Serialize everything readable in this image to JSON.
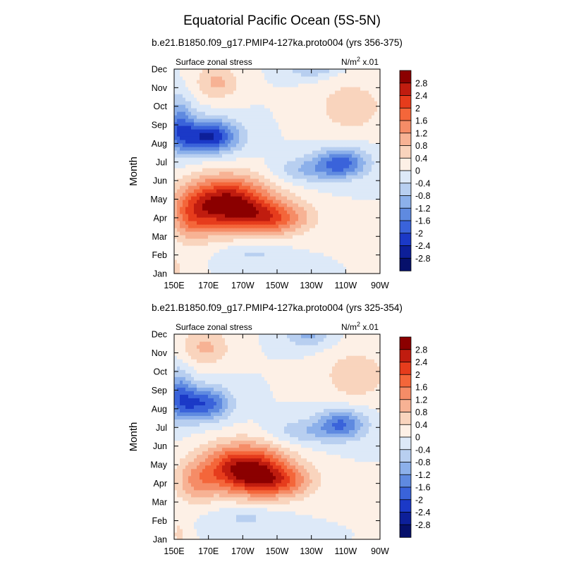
{
  "figure": {
    "title": "Equatorial Pacific Ocean (5S-5N)"
  },
  "chart_data": [
    {
      "type": "heatmap",
      "title": "b.e21.B1850.f09_g17.PMIP4-127ka.proto004 (yrs 356-375)",
      "left_label": "Surface zonal stress",
      "right_label": "N/m",
      "right_label_sup": "2",
      "right_label_suffix": " x.01",
      "xlabel": "",
      "ylabel": "Month",
      "x_ticks": [
        "150E",
        "170E",
        "170W",
        "150W",
        "130W",
        "110W",
        "90W"
      ],
      "y_ticks": [
        "Jan",
        "Feb",
        "Mar",
        "Apr",
        "May",
        "Jun",
        "Jul",
        "Aug",
        "Sep",
        "Oct",
        "Nov",
        "Dec"
      ],
      "xlim": [
        150,
        270
      ],
      "units": "N/m^2 x.01",
      "features": [
        {
          "lon": 180,
          "month": 3.8,
          "value": 3.1,
          "spread_lon": 26,
          "spread_month": 1.4
        },
        {
          "lon": 208,
          "month": 3.0,
          "value": 1.6,
          "spread_lon": 22,
          "spread_month": 0.9
        },
        {
          "lon": 160,
          "month": 2.8,
          "value": 0.9,
          "spread_lon": 12,
          "spread_month": 1.2
        },
        {
          "lon": 170,
          "month": 7.4,
          "value": -2.5,
          "spread_lon": 17,
          "spread_month": 0.9
        },
        {
          "lon": 153,
          "month": 8.0,
          "value": -1.4,
          "spread_lon": 8,
          "spread_month": 1.5
        },
        {
          "lon": 248,
          "month": 6.0,
          "value": -1.7,
          "spread_lon": 15,
          "spread_month": 0.8
        },
        {
          "lon": 228,
          "month": 5.6,
          "value": -0.8,
          "spread_lon": 20,
          "spread_month": 0.7
        },
        {
          "lon": 230,
          "month": 11.2,
          "value": -1.0,
          "spread_lon": 14,
          "spread_month": 0.6
        },
        {
          "lon": 175,
          "month": 10.3,
          "value": 0.9,
          "spread_lon": 13,
          "spread_month": 0.9
        },
        {
          "lon": 253,
          "month": 9.0,
          "value": 0.7,
          "spread_lon": 20,
          "spread_month": 1.4
        },
        {
          "lon": 196,
          "month": 1.1,
          "value": -0.5,
          "spread_lon": 18,
          "spread_month": 0.6
        },
        {
          "lon": 151,
          "month": 0.2,
          "value": 0.6,
          "spread_lon": 4,
          "spread_month": 0.7
        }
      ],
      "colorbar": {
        "levels": [
          "2.8",
          "2.4",
          "2",
          "1.6",
          "1.2",
          "0.8",
          "0.4",
          "0",
          "-0.4",
          "-0.8",
          "-1.2",
          "-1.6",
          "-2",
          "-2.4",
          "-2.8"
        ],
        "colors": [
          "#8b0000",
          "#c01c0f",
          "#e63c1c",
          "#f4663a",
          "#f58c67",
          "#f7b294",
          "#f9d4bd",
          "#fdf0e6",
          "#dde9f8",
          "#b8cff0",
          "#8cb0ea",
          "#5f8ae0",
          "#3a63da",
          "#1b39c7",
          "#0d1f99",
          "#06106b"
        ]
      }
    },
    {
      "type": "heatmap",
      "title": "b.e21.B1850.f09_g17.PMIP4-127ka.proto004 (yrs 325-354)",
      "left_label": "Surface zonal stress",
      "right_label": "N/m",
      "right_label_sup": "2",
      "right_label_suffix": " x.01",
      "xlabel": "",
      "ylabel": "Month",
      "x_ticks": [
        "150E",
        "170E",
        "170W",
        "150W",
        "130W",
        "110W",
        "90W"
      ],
      "y_ticks": [
        "Jan",
        "Feb",
        "Mar",
        "Apr",
        "May",
        "Jun",
        "Jul",
        "Aug",
        "Sep",
        "Oct",
        "Nov",
        "Dec"
      ],
      "xlim": [
        150,
        270
      ],
      "units": "N/m^2 x.01",
      "features": [
        {
          "lon": 191,
          "month": 3.8,
          "value": 3.0,
          "spread_lon": 24,
          "spread_month": 1.3
        },
        {
          "lon": 212,
          "month": 3.1,
          "value": 1.4,
          "spread_lon": 20,
          "spread_month": 0.9
        },
        {
          "lon": 162,
          "month": 3.0,
          "value": 0.9,
          "spread_lon": 12,
          "spread_month": 1.1
        },
        {
          "lon": 167,
          "month": 7.3,
          "value": -2.0,
          "spread_lon": 15,
          "spread_month": 0.9
        },
        {
          "lon": 153,
          "month": 7.8,
          "value": -1.3,
          "spread_lon": 8,
          "spread_month": 1.4
        },
        {
          "lon": 248,
          "month": 6.2,
          "value": -1.6,
          "spread_lon": 14,
          "spread_month": 0.8
        },
        {
          "lon": 225,
          "month": 5.8,
          "value": -0.7,
          "spread_lon": 20,
          "spread_month": 0.7
        },
        {
          "lon": 228,
          "month": 11.0,
          "value": -0.9,
          "spread_lon": 13,
          "spread_month": 0.7
        },
        {
          "lon": 168,
          "month": 10.3,
          "value": 0.9,
          "spread_lon": 14,
          "spread_month": 1.0
        },
        {
          "lon": 256,
          "month": 8.8,
          "value": 0.7,
          "spread_lon": 20,
          "spread_month": 1.4
        },
        {
          "lon": 192,
          "month": 1.2,
          "value": -0.5,
          "spread_lon": 20,
          "spread_month": 0.6
        },
        {
          "lon": 153,
          "month": 0.3,
          "value": 0.5,
          "spread_lon": 5,
          "spread_month": 0.8
        }
      ],
      "colorbar": {
        "levels": [
          "2.8",
          "2.4",
          "2",
          "1.6",
          "1.2",
          "0.8",
          "0.4",
          "0",
          "-0.4",
          "-0.8",
          "-1.2",
          "-1.6",
          "-2",
          "-2.4",
          "-2.8"
        ],
        "colors": [
          "#8b0000",
          "#c01c0f",
          "#e63c1c",
          "#f4663a",
          "#f58c67",
          "#f7b294",
          "#f9d4bd",
          "#fdf0e6",
          "#dde9f8",
          "#b8cff0",
          "#8cb0ea",
          "#5f8ae0",
          "#3a63da",
          "#1b39c7",
          "#0d1f99",
          "#06106b"
        ]
      }
    }
  ]
}
